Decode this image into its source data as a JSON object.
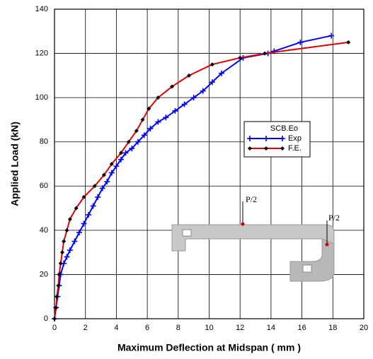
{
  "chart_data": {
    "type": "line",
    "xlabel": "Maximum Deflection at Midspan ( mm )",
    "ylabel": "Applied Load (kN)",
    "xlim": [
      0,
      20
    ],
    "ylim": [
      0,
      140
    ],
    "xticks": [
      0,
      2,
      4,
      6,
      8,
      10,
      12,
      14,
      16,
      18,
      20
    ],
    "yticks": [
      0,
      20,
      40,
      60,
      80,
      100,
      120,
      140
    ],
    "grid": true,
    "legend_title": "SCB.Eo",
    "legend_position": "center right",
    "annotations": [
      "P/2",
      "P/2"
    ],
    "series": [
      {
        "name": "Exp",
        "color": "#0000ff",
        "marker": "plus",
        "marker_color": "#0000ff",
        "x": [
          0,
          0.1,
          0.2,
          0.3,
          0.4,
          0.6,
          0.8,
          1.0,
          1.3,
          1.6,
          1.9,
          2.2,
          2.5,
          2.8,
          3.1,
          3.4,
          3.7,
          4.0,
          4.3,
          4.6,
          5.0,
          5.4,
          5.8,
          6.2,
          6.7,
          7.2,
          7.8,
          8.4,
          9.0,
          9.6,
          10.2,
          10.8,
          12.2,
          13.8,
          14.2,
          15.9,
          17.9
        ],
        "values": [
          0,
          5,
          10,
          15,
          20,
          25,
          28,
          31,
          35,
          39,
          43,
          47,
          51,
          55,
          59,
          62,
          66,
          69,
          72,
          75,
          77,
          80,
          83,
          86,
          89,
          91,
          94,
          97,
          100,
          103,
          107,
          111,
          118,
          120,
          121,
          125,
          128
        ]
      },
      {
        "name": "F.E.",
        "color": "#e00000",
        "marker": "diamond",
        "marker_color": "#000000",
        "x": [
          0,
          0.1,
          0.15,
          0.25,
          0.3,
          0.4,
          0.5,
          0.6,
          0.8,
          1.0,
          1.4,
          1.9,
          2.6,
          3.2,
          3.7,
          4.3,
          4.8,
          5.3,
          5.7,
          6.1,
          6.7,
          7.6,
          8.7,
          10.2,
          12.0,
          13.6,
          19.0
        ],
        "values": [
          0,
          5,
          10,
          15,
          20,
          25,
          30,
          35,
          40,
          45,
          50,
          55,
          60,
          65,
          70,
          75,
          80,
          85,
          90,
          95,
          100,
          105,
          110,
          115,
          118,
          120,
          125
        ]
      }
    ]
  }
}
